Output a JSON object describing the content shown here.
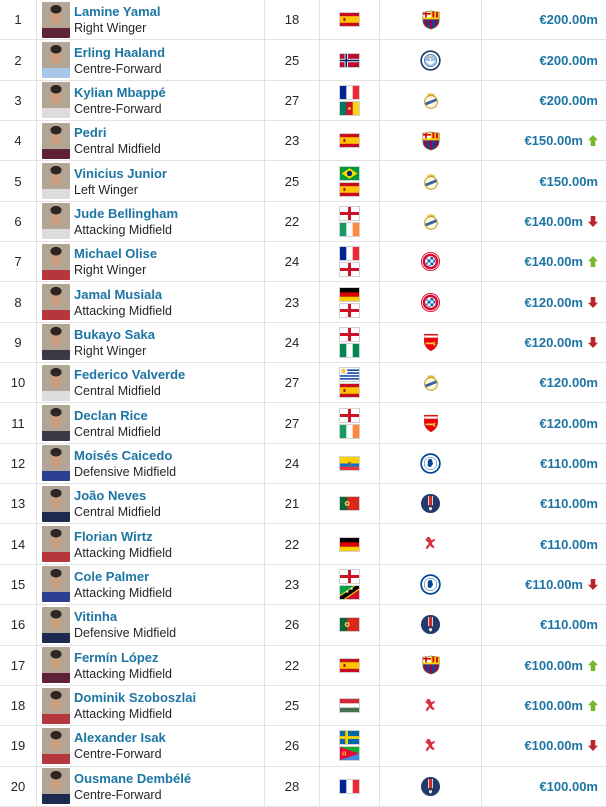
{
  "table": {
    "colors": {
      "link_blue": "#1d75a3",
      "value_blue": "#1d75a3",
      "trend_up_green": "#76b82a",
      "trend_down_red": "#bb242c",
      "row_border": "#e3e3e3"
    },
    "rows": [
      {
        "rank": "1",
        "name": "Lamine Yamal",
        "position": "Right Winger",
        "age": "18",
        "nationalities": [
          "Spain"
        ],
        "club": "FC Barcelona",
        "value": "€200.00m",
        "trend": ""
      },
      {
        "rank": "2",
        "name": "Erling Haaland",
        "position": "Centre-Forward",
        "age": "25",
        "nationalities": [
          "Norway"
        ],
        "club": "Manchester City",
        "value": "€200.00m",
        "trend": ""
      },
      {
        "rank": "3",
        "name": "Kylian Mbappé",
        "position": "Centre-Forward",
        "age": "27",
        "nationalities": [
          "France",
          "Cameroon"
        ],
        "club": "Real Madrid",
        "value": "€200.00m",
        "trend": ""
      },
      {
        "rank": "4",
        "name": "Pedri",
        "position": "Central Midfield",
        "age": "23",
        "nationalities": [
          "Spain"
        ],
        "club": "FC Barcelona",
        "value": "€150.00m",
        "trend": "up"
      },
      {
        "rank": "5",
        "name": "Vinicius Junior",
        "position": "Left Winger",
        "age": "25",
        "nationalities": [
          "Brazil",
          "Spain"
        ],
        "club": "Real Madrid",
        "value": "€150.00m",
        "trend": ""
      },
      {
        "rank": "6",
        "name": "Jude Bellingham",
        "position": "Attacking Midfield",
        "age": "22",
        "nationalities": [
          "England",
          "Ireland"
        ],
        "club": "Real Madrid",
        "value": "€140.00m",
        "trend": "down"
      },
      {
        "rank": "7",
        "name": "Michael Olise",
        "position": "Right Winger",
        "age": "24",
        "nationalities": [
          "France",
          "England"
        ],
        "club": "Bayern Munich",
        "value": "€140.00m",
        "trend": "up"
      },
      {
        "rank": "8",
        "name": "Jamal Musiala",
        "position": "Attacking Midfield",
        "age": "23",
        "nationalities": [
          "Germany",
          "England"
        ],
        "club": "Bayern Munich",
        "value": "€120.00m",
        "trend": "down"
      },
      {
        "rank": "9",
        "name": "Bukayo Saka",
        "position": "Right Winger",
        "age": "24",
        "nationalities": [
          "England",
          "Nigeria"
        ],
        "club": "Arsenal FC",
        "value": "€120.00m",
        "trend": "down"
      },
      {
        "rank": "10",
        "name": "Federico Valverde",
        "position": "Central Midfield",
        "age": "27",
        "nationalities": [
          "Uruguay",
          "Spain"
        ],
        "club": "Real Madrid",
        "value": "€120.00m",
        "trend": ""
      },
      {
        "rank": "11",
        "name": "Declan Rice",
        "position": "Central Midfield",
        "age": "27",
        "nationalities": [
          "England",
          "Ireland"
        ],
        "club": "Arsenal FC",
        "value": "€120.00m",
        "trend": ""
      },
      {
        "rank": "12",
        "name": "Moisés Caicedo",
        "position": "Defensive Midfield",
        "age": "24",
        "nationalities": [
          "Ecuador"
        ],
        "club": "Chelsea FC",
        "value": "€110.00m",
        "trend": ""
      },
      {
        "rank": "13",
        "name": "João Neves",
        "position": "Central Midfield",
        "age": "21",
        "nationalities": [
          "Portugal"
        ],
        "club": "Paris Saint-Germain",
        "value": "€110.00m",
        "trend": ""
      },
      {
        "rank": "14",
        "name": "Florian Wirtz",
        "position": "Attacking Midfield",
        "age": "22",
        "nationalities": [
          "Germany"
        ],
        "club": "Liverpool FC",
        "value": "€110.00m",
        "trend": ""
      },
      {
        "rank": "15",
        "name": "Cole Palmer",
        "position": "Attacking Midfield",
        "age": "23",
        "nationalities": [
          "England",
          "St. Kitts & Nevis"
        ],
        "club": "Chelsea FC",
        "value": "€110.00m",
        "trend": "down"
      },
      {
        "rank": "16",
        "name": "Vitinha",
        "position": "Defensive Midfield",
        "age": "26",
        "nationalities": [
          "Portugal"
        ],
        "club": "Paris Saint-Germain",
        "value": "€110.00m",
        "trend": ""
      },
      {
        "rank": "17",
        "name": "Fermín López",
        "position": "Attacking Midfield",
        "age": "22",
        "nationalities": [
          "Spain"
        ],
        "club": "FC Barcelona",
        "value": "€100.00m",
        "trend": "up"
      },
      {
        "rank": "18",
        "name": "Dominik Szoboszlai",
        "position": "Attacking Midfield",
        "age": "25",
        "nationalities": [
          "Hungary"
        ],
        "club": "Liverpool FC",
        "value": "€100.00m",
        "trend": "up"
      },
      {
        "rank": "19",
        "name": "Alexander Isak",
        "position": "Centre-Forward",
        "age": "26",
        "nationalities": [
          "Sweden",
          "Eritrea"
        ],
        "club": "Liverpool FC",
        "value": "€100.00m",
        "trend": "down"
      },
      {
        "rank": "20",
        "name": "Ousmane Dembélé",
        "position": "Centre-Forward",
        "age": "28",
        "nationalities": [
          "France"
        ],
        "club": "Paris Saint-Germain",
        "value": "€100.00m",
        "trend": ""
      }
    ]
  }
}
